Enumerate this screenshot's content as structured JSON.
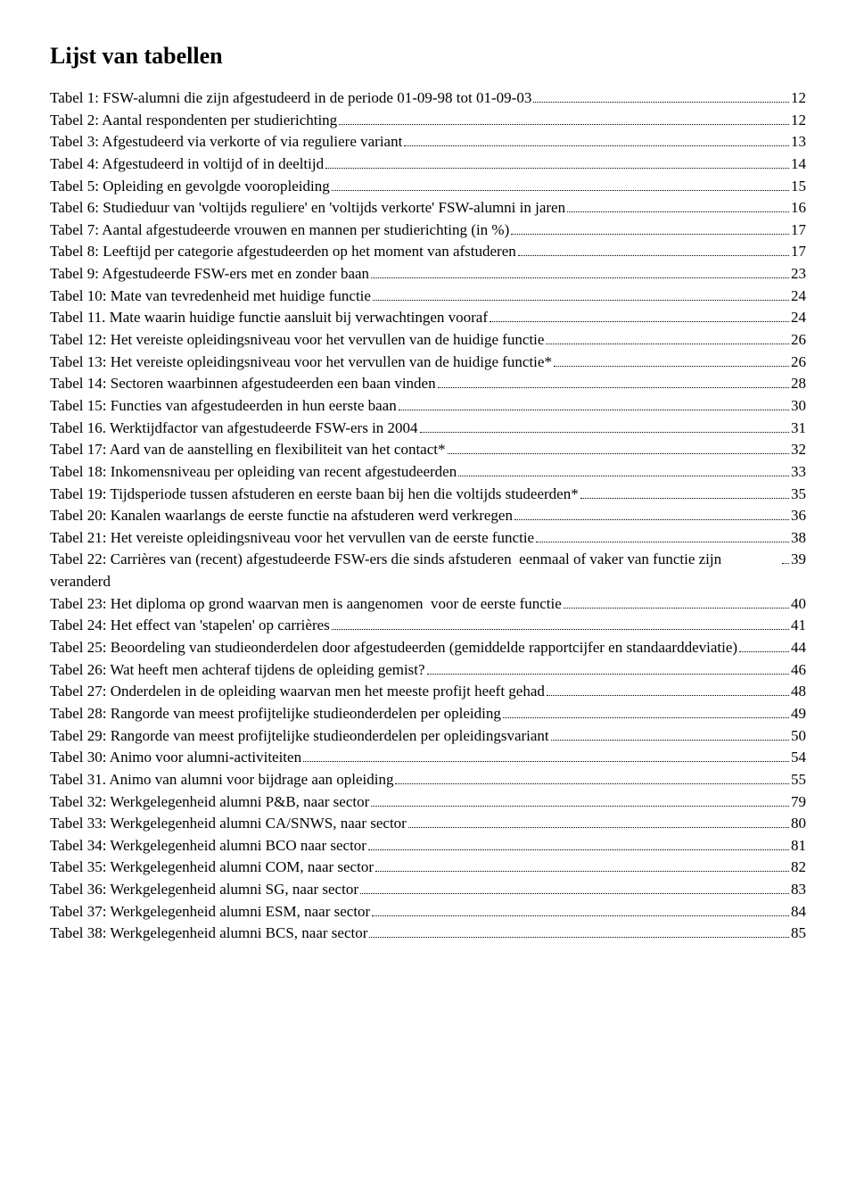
{
  "title": "Lijst van tabellen",
  "entries": [
    {
      "label": "Tabel 1: FSW-alumni die zijn afgestudeerd in de periode 01-09-98 tot 01-09-03",
      "page": "12"
    },
    {
      "label": "Tabel 2: Aantal respondenten per studierichting",
      "page": "12"
    },
    {
      "label": "Tabel 3: Afgestudeerd via verkorte of via reguliere variant",
      "page": "13"
    },
    {
      "label": "Tabel 4: Afgestudeerd in voltijd of in deeltijd",
      "page": "14"
    },
    {
      "label": "Tabel 5: Opleiding en gevolgde vooropleiding",
      "page": "15"
    },
    {
      "label": "Tabel 6: Studieduur van 'voltijds reguliere' en 'voltijds verkorte' FSW-alumni in jaren",
      "page": "16"
    },
    {
      "label": "Tabel 7: Aantal afgestudeerde vrouwen en mannen per studierichting (in %)",
      "page": "17"
    },
    {
      "label": "Tabel 8: Leeftijd per categorie afgestudeerden op het moment van afstuderen",
      "page": "17"
    },
    {
      "label": "Tabel 9: Afgestudeerde FSW-ers met en zonder baan",
      "page": "23"
    },
    {
      "label": "Tabel 10: Mate van tevredenheid met huidige functie",
      "page": "24"
    },
    {
      "label": "Tabel 11. Mate waarin huidige functie aansluit bij verwachtingen vooraf",
      "page": "24"
    },
    {
      "label": "Tabel 12: Het vereiste opleidingsniveau voor het vervullen van de huidige functie",
      "page": "26"
    },
    {
      "label": "Tabel 13: Het vereiste opleidingsniveau voor het vervullen van de huidige functie*",
      "page": "26"
    },
    {
      "label": "Tabel 14: Sectoren waarbinnen afgestudeerden een baan vinden",
      "page": "28"
    },
    {
      "label": "Tabel 15: Functies van afgestudeerden in hun eerste baan",
      "page": "30"
    },
    {
      "label": "Tabel 16. Werktijdfactor van afgestudeerde FSW-ers in 2004",
      "page": "31"
    },
    {
      "label": "Tabel 17: Aard van de aanstelling en flexibiliteit van het contact*",
      "page": "32"
    },
    {
      "label": "Tabel 18: Inkomensniveau per opleiding van recent afgestudeerden",
      "page": "33"
    },
    {
      "label": "Tabel 19: Tijdsperiode tussen afstuderen en eerste baan bij hen die voltijds studeerden*",
      "page": "35"
    },
    {
      "label": "Tabel 20: Kanalen waarlangs de eerste functie na afstuderen werd verkregen",
      "page": "36"
    },
    {
      "label": "Tabel 21: Het vereiste opleidingsniveau voor het vervullen van de eerste functie",
      "page": "38"
    },
    {
      "label": "Tabel 22: Carrières van (recent) afgestudeerde FSW-ers die sinds afstuderen  eenmaal of vaker van functie zijn veranderd",
      "page": "39"
    },
    {
      "label": "Tabel 23: Het diploma op grond waarvan men is aangenomen  voor de eerste functie",
      "page": "40"
    },
    {
      "label": "Tabel 24: Het effect van 'stapelen' op carrières",
      "page": "41"
    },
    {
      "label": "Tabel 25: Beoordeling van studieonderdelen door afgestudeerden (gemiddelde rapportcijfer en standaarddeviatie)",
      "page": "44"
    },
    {
      "label": "Tabel 26: Wat heeft men achteraf tijdens de opleiding gemist?",
      "page": "46"
    },
    {
      "label": "Tabel 27: Onderdelen in de opleiding waarvan men het meeste profijt heeft gehad",
      "page": "48"
    },
    {
      "label": "Tabel 28: Rangorde van meest profijtelijke studieonderdelen per opleiding",
      "page": "49"
    },
    {
      "label": "Tabel 29: Rangorde van meest profijtelijke studieonderdelen per opleidingsvariant",
      "page": "50"
    },
    {
      "label": "Tabel 30: Animo voor alumni-activiteiten",
      "page": "54"
    },
    {
      "label": "Tabel 31. Animo van alumni voor bijdrage aan opleiding",
      "page": "55"
    },
    {
      "label": "Tabel 32: Werkgelegenheid alumni P&B, naar sector",
      "page": "79"
    },
    {
      "label": "Tabel 33: Werkgelegenheid alumni CA/SNWS, naar sector",
      "page": "80"
    },
    {
      "label": "Tabel 34: Werkgelegenheid alumni BCO naar sector",
      "page": "81"
    },
    {
      "label": "Tabel 35: Werkgelegenheid alumni COM, naar sector",
      "page": "82"
    },
    {
      "label": "Tabel 36: Werkgelegenheid alumni SG, naar sector",
      "page": "83"
    },
    {
      "label": "Tabel 37: Werkgelegenheid alumni ESM, naar sector",
      "page": "84"
    },
    {
      "label": "Tabel 38: Werkgelegenheid alumni BCS, naar sector",
      "page": "85"
    }
  ]
}
